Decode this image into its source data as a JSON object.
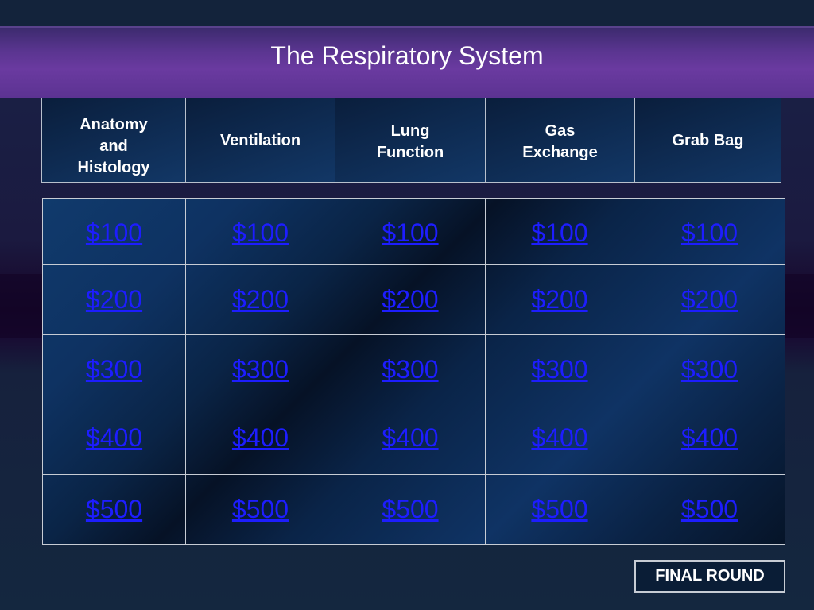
{
  "title": "The Respiratory System",
  "categories": [
    "Anatomy\nand\nHistology",
    "Ventilation",
    "Lung\nFunction",
    "Gas\nExchange",
    "Grab Bag"
  ],
  "rows": [
    [
      "$100",
      "$100",
      "$100",
      "$100",
      "$100"
    ],
    [
      "$200",
      "$200",
      "$200",
      "$200",
      "$200"
    ],
    [
      "$300",
      "$300",
      "$300",
      "$300",
      "$300"
    ],
    [
      "$400",
      "$400",
      "$400",
      "$400",
      "$400"
    ],
    [
      "$500",
      "$500",
      "$500",
      "$500",
      "$500"
    ]
  ],
  "final_round_label": "FINAL ROUND",
  "colors": {
    "title_bar": "#6a3aa0",
    "board": "#0e3262",
    "link": "#1d1dff",
    "border": "#c7ccd4"
  }
}
